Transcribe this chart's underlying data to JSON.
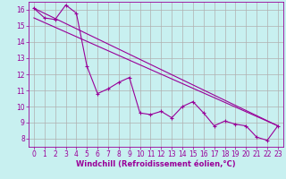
{
  "bg_color": "#c8f0f0",
  "grid_color": "#b0b0b0",
  "line_color": "#990099",
  "marker_color": "#990099",
  "xlabel": "Windchill (Refroidissement éolien,°C)",
  "xlabel_fontsize": 6,
  "tick_fontsize": 5.5,
  "xlim": [
    -0.5,
    23.5
  ],
  "ylim": [
    7.5,
    16.5
  ],
  "yticks": [
    8,
    9,
    10,
    11,
    12,
    13,
    14,
    15,
    16
  ],
  "xticks": [
    0,
    1,
    2,
    3,
    4,
    5,
    6,
    7,
    8,
    9,
    10,
    11,
    12,
    13,
    14,
    15,
    16,
    17,
    18,
    19,
    20,
    21,
    22,
    23
  ],
  "line1_x": [
    0,
    1,
    2,
    3,
    4,
    5,
    6,
    7,
    8,
    9,
    10,
    11,
    12,
    13,
    14,
    15,
    16,
    17,
    18,
    19,
    20,
    21,
    22,
    23
  ],
  "line1_y": [
    16.1,
    15.5,
    15.4,
    16.3,
    15.8,
    12.5,
    10.8,
    11.1,
    11.5,
    11.8,
    9.6,
    9.5,
    9.7,
    9.3,
    10.0,
    10.3,
    9.6,
    8.8,
    9.1,
    8.9,
    8.8,
    8.1,
    7.9,
    8.8
  ],
  "line2_x": [
    0,
    23
  ],
  "line2_y": [
    16.1,
    8.8
  ],
  "line3_x": [
    0,
    23
  ],
  "line3_y": [
    15.5,
    8.8
  ]
}
